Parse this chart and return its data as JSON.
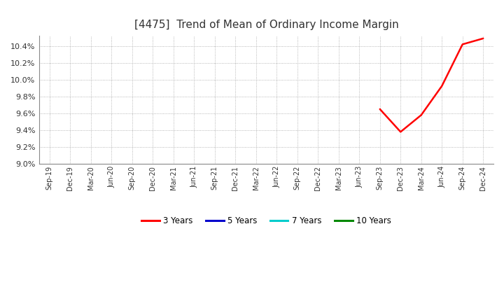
{
  "title": "[4475]  Trend of Mean of Ordinary Income Margin",
  "title_fontsize": 11,
  "title_fontweight": "normal",
  "background_color": "#ffffff",
  "plot_bg_color": "#ffffff",
  "grid_color": "#999999",
  "ylim": [
    0.09,
    0.1052
  ],
  "yticks": [
    0.09,
    0.092,
    0.094,
    0.096,
    0.098,
    0.1,
    0.102,
    0.104
  ],
  "xtick_labels": [
    "Sep-19",
    "Dec-19",
    "Mar-20",
    "Jun-20",
    "Sep-20",
    "Dec-20",
    "Mar-21",
    "Jun-21",
    "Sep-21",
    "Dec-21",
    "Mar-22",
    "Jun-22",
    "Sep-22",
    "Dec-22",
    "Mar-23",
    "Jun-23",
    "Sep-23",
    "Dec-23",
    "Mar-24",
    "Jun-24",
    "Sep-24",
    "Dec-24"
  ],
  "series_3y": {
    "color": "#ff0000",
    "label": "3 Years",
    "x_indices": [
      16,
      17,
      18,
      19,
      20,
      21
    ],
    "y_values": [
      0.0965,
      0.0938,
      0.0958,
      0.09925,
      0.1042,
      0.1049
    ]
  },
  "series_5y": {
    "color": "#0000cc",
    "label": "5 Years",
    "x_indices": [],
    "y_values": []
  },
  "series_7y": {
    "color": "#00cccc",
    "label": "7 Years",
    "x_indices": [],
    "y_values": []
  },
  "series_10y": {
    "color": "#008800",
    "label": "10 Years",
    "x_indices": [],
    "y_values": []
  },
  "legend_labels": [
    "3 Years",
    "5 Years",
    "7 Years",
    "10 Years"
  ],
  "legend_colors": [
    "#ff0000",
    "#0000cc",
    "#00cccc",
    "#008800"
  ]
}
